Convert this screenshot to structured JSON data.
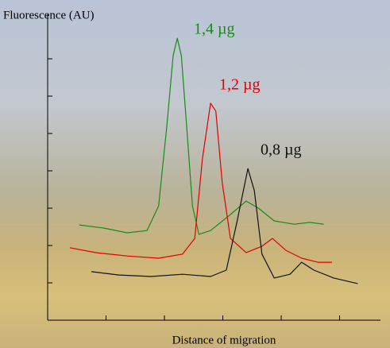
{
  "chart_data": {
    "type": "line",
    "ylabel": "Fluorescence (AU)",
    "xlabel": "Distance of migration",
    "xlim": [
      0,
      5.7
    ],
    "xticks": [
      1,
      2,
      3,
      4,
      5
    ],
    "ylim": [
      0,
      8
    ],
    "yticks": [
      1,
      2,
      3,
      4,
      5,
      6,
      7
    ],
    "series": [
      {
        "name": "1,4 µg",
        "color": "#1a8a1a",
        "x": [
          0.54,
          0.95,
          1.36,
          1.7,
          1.9,
          2.04,
          2.15,
          2.22,
          2.29,
          2.38,
          2.48,
          2.59,
          2.79,
          3.13,
          3.4,
          3.61,
          3.88,
          4.22,
          4.49,
          4.73
        ],
        "values": [
          2.55,
          2.47,
          2.34,
          2.4,
          3.06,
          5.19,
          7.09,
          7.55,
          7.09,
          5.19,
          3.06,
          2.3,
          2.4,
          2.83,
          3.19,
          3.0,
          2.66,
          2.57,
          2.62,
          2.57
        ]
      },
      {
        "name": "1,2 µg",
        "color": "#e00000",
        "x": [
          0.38,
          0.82,
          1.36,
          1.9,
          2.31,
          2.52,
          2.65,
          2.79,
          2.88,
          2.99,
          3.13,
          3.4,
          3.67,
          3.85,
          4.08,
          4.35,
          4.63,
          4.87
        ],
        "values": [
          1.94,
          1.81,
          1.72,
          1.66,
          1.77,
          2.19,
          4.32,
          5.81,
          5.6,
          3.68,
          2.19,
          1.81,
          1.98,
          2.19,
          1.87,
          1.66,
          1.55,
          1.55
        ]
      },
      {
        "name": "0,8 µg",
        "color": "#111111",
        "x": [
          0.75,
          1.22,
          1.77,
          2.31,
          2.79,
          3.06,
          3.24,
          3.43,
          3.54,
          3.67,
          3.88,
          4.15,
          4.35,
          4.56,
          4.9,
          5.31
        ],
        "values": [
          1.3,
          1.21,
          1.17,
          1.23,
          1.17,
          1.34,
          2.62,
          4.06,
          3.47,
          1.77,
          1.13,
          1.23,
          1.55,
          1.34,
          1.13,
          0.98
        ]
      }
    ]
  }
}
